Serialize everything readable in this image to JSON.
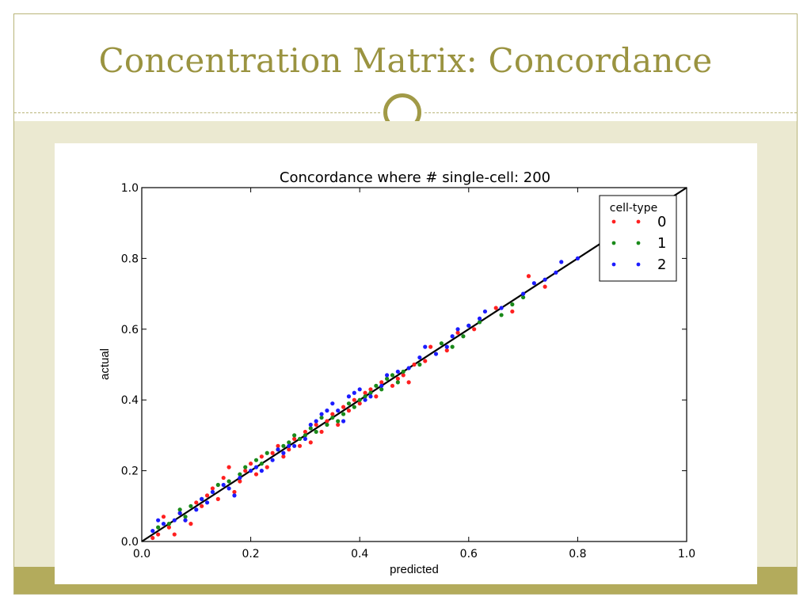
{
  "slide": {
    "title": "Concentration Matrix: Concordance"
  },
  "colors": {
    "accent": "#a19a47",
    "band": "#ebe9d1",
    "footer": "#b3ab5c",
    "series": [
      "#ff2020",
      "#1a8a1a",
      "#1c1cff"
    ]
  },
  "chart_data": {
    "type": "scatter",
    "title": "Concordance where # single-cell: 200",
    "xlabel": "predicted",
    "ylabel": "actual",
    "xlim": [
      0.0,
      1.0
    ],
    "ylim": [
      0.0,
      1.0
    ],
    "xticks": [
      "0.0",
      "0.2",
      "0.4",
      "0.6",
      "0.8",
      "1.0"
    ],
    "yticks": [
      "0.0",
      "0.2",
      "0.4",
      "0.6",
      "0.8",
      "1.0"
    ],
    "grid": false,
    "legend": {
      "title": "cell-type",
      "position": "top-right"
    },
    "reference_line": {
      "x": [
        0.0,
        1.0
      ],
      "y": [
        0.0,
        1.0
      ]
    },
    "series": [
      {
        "name": "0",
        "color": "#ff2020",
        "points": [
          [
            0.02,
            0.01
          ],
          [
            0.03,
            0.02
          ],
          [
            0.04,
            0.07
          ],
          [
            0.05,
            0.04
          ],
          [
            0.06,
            0.02
          ],
          [
            0.07,
            0.08
          ],
          [
            0.08,
            0.06
          ],
          [
            0.09,
            0.05
          ],
          [
            0.1,
            0.11
          ],
          [
            0.11,
            0.1
          ],
          [
            0.12,
            0.13
          ],
          [
            0.13,
            0.15
          ],
          [
            0.14,
            0.12
          ],
          [
            0.15,
            0.18
          ],
          [
            0.16,
            0.21
          ],
          [
            0.17,
            0.14
          ],
          [
            0.18,
            0.17
          ],
          [
            0.19,
            0.2
          ],
          [
            0.2,
            0.22
          ],
          [
            0.21,
            0.19
          ],
          [
            0.22,
            0.24
          ],
          [
            0.23,
            0.21
          ],
          [
            0.24,
            0.25
          ],
          [
            0.25,
            0.27
          ],
          [
            0.26,
            0.24
          ],
          [
            0.27,
            0.26
          ],
          [
            0.28,
            0.29
          ],
          [
            0.29,
            0.27
          ],
          [
            0.3,
            0.31
          ],
          [
            0.31,
            0.28
          ],
          [
            0.32,
            0.33
          ],
          [
            0.33,
            0.31
          ],
          [
            0.34,
            0.34
          ],
          [
            0.35,
            0.36
          ],
          [
            0.36,
            0.33
          ],
          [
            0.37,
            0.38
          ],
          [
            0.38,
            0.37
          ],
          [
            0.39,
            0.4
          ],
          [
            0.4,
            0.39
          ],
          [
            0.41,
            0.42
          ],
          [
            0.42,
            0.43
          ],
          [
            0.43,
            0.41
          ],
          [
            0.44,
            0.45
          ],
          [
            0.46,
            0.44
          ],
          [
            0.47,
            0.46
          ],
          [
            0.48,
            0.47
          ],
          [
            0.49,
            0.45
          ],
          [
            0.5,
            0.5
          ],
          [
            0.52,
            0.51
          ],
          [
            0.53,
            0.55
          ],
          [
            0.56,
            0.54
          ],
          [
            0.58,
            0.59
          ],
          [
            0.61,
            0.6
          ],
          [
            0.65,
            0.66
          ],
          [
            0.68,
            0.65
          ],
          [
            0.71,
            0.75
          ],
          [
            0.74,
            0.72
          ]
        ]
      },
      {
        "name": "1",
        "color": "#1a8a1a",
        "points": [
          [
            0.03,
            0.04
          ],
          [
            0.05,
            0.05
          ],
          [
            0.07,
            0.09
          ],
          [
            0.08,
            0.07
          ],
          [
            0.09,
            0.1
          ],
          [
            0.11,
            0.12
          ],
          [
            0.13,
            0.14
          ],
          [
            0.14,
            0.16
          ],
          [
            0.16,
            0.17
          ],
          [
            0.18,
            0.19
          ],
          [
            0.19,
            0.21
          ],
          [
            0.21,
            0.23
          ],
          [
            0.22,
            0.22
          ],
          [
            0.23,
            0.25
          ],
          [
            0.25,
            0.26
          ],
          [
            0.26,
            0.27
          ],
          [
            0.27,
            0.28
          ],
          [
            0.28,
            0.3
          ],
          [
            0.29,
            0.29
          ],
          [
            0.3,
            0.3
          ],
          [
            0.31,
            0.32
          ],
          [
            0.32,
            0.31
          ],
          [
            0.33,
            0.35
          ],
          [
            0.34,
            0.33
          ],
          [
            0.35,
            0.35
          ],
          [
            0.36,
            0.34
          ],
          [
            0.37,
            0.36
          ],
          [
            0.38,
            0.39
          ],
          [
            0.39,
            0.38
          ],
          [
            0.4,
            0.4
          ],
          [
            0.41,
            0.41
          ],
          [
            0.42,
            0.42
          ],
          [
            0.43,
            0.44
          ],
          [
            0.44,
            0.43
          ],
          [
            0.45,
            0.46
          ],
          [
            0.46,
            0.47
          ],
          [
            0.47,
            0.45
          ],
          [
            0.48,
            0.48
          ],
          [
            0.51,
            0.5
          ],
          [
            0.55,
            0.56
          ],
          [
            0.57,
            0.55
          ],
          [
            0.59,
            0.58
          ],
          [
            0.6,
            0.61
          ],
          [
            0.62,
            0.62
          ],
          [
            0.66,
            0.64
          ],
          [
            0.68,
            0.67
          ],
          [
            0.7,
            0.69
          ]
        ]
      },
      {
        "name": "2",
        "color": "#1c1cff",
        "points": [
          [
            0.02,
            0.03
          ],
          [
            0.03,
            0.06
          ],
          [
            0.04,
            0.05
          ],
          [
            0.06,
            0.06
          ],
          [
            0.07,
            0.08
          ],
          [
            0.08,
            0.06
          ],
          [
            0.1,
            0.09
          ],
          [
            0.11,
            0.12
          ],
          [
            0.12,
            0.11
          ],
          [
            0.13,
            0.14
          ],
          [
            0.15,
            0.16
          ],
          [
            0.16,
            0.15
          ],
          [
            0.17,
            0.13
          ],
          [
            0.18,
            0.18
          ],
          [
            0.2,
            0.2
          ],
          [
            0.21,
            0.21
          ],
          [
            0.22,
            0.2
          ],
          [
            0.24,
            0.23
          ],
          [
            0.25,
            0.26
          ],
          [
            0.26,
            0.25
          ],
          [
            0.27,
            0.27
          ],
          [
            0.28,
            0.27
          ],
          [
            0.3,
            0.29
          ],
          [
            0.31,
            0.33
          ],
          [
            0.32,
            0.34
          ],
          [
            0.33,
            0.36
          ],
          [
            0.34,
            0.37
          ],
          [
            0.35,
            0.39
          ],
          [
            0.36,
            0.37
          ],
          [
            0.37,
            0.34
          ],
          [
            0.38,
            0.41
          ],
          [
            0.39,
            0.42
          ],
          [
            0.4,
            0.43
          ],
          [
            0.41,
            0.4
          ],
          [
            0.42,
            0.41
          ],
          [
            0.44,
            0.44
          ],
          [
            0.45,
            0.47
          ],
          [
            0.47,
            0.48
          ],
          [
            0.49,
            0.49
          ],
          [
            0.51,
            0.52
          ],
          [
            0.52,
            0.55
          ],
          [
            0.54,
            0.53
          ],
          [
            0.56,
            0.55
          ],
          [
            0.57,
            0.58
          ],
          [
            0.58,
            0.6
          ],
          [
            0.6,
            0.61
          ],
          [
            0.62,
            0.63
          ],
          [
            0.63,
            0.65
          ],
          [
            0.66,
            0.66
          ],
          [
            0.7,
            0.7
          ],
          [
            0.72,
            0.73
          ],
          [
            0.74,
            0.74
          ],
          [
            0.76,
            0.76
          ],
          [
            0.77,
            0.79
          ],
          [
            0.8,
            0.8
          ]
        ]
      }
    ]
  }
}
